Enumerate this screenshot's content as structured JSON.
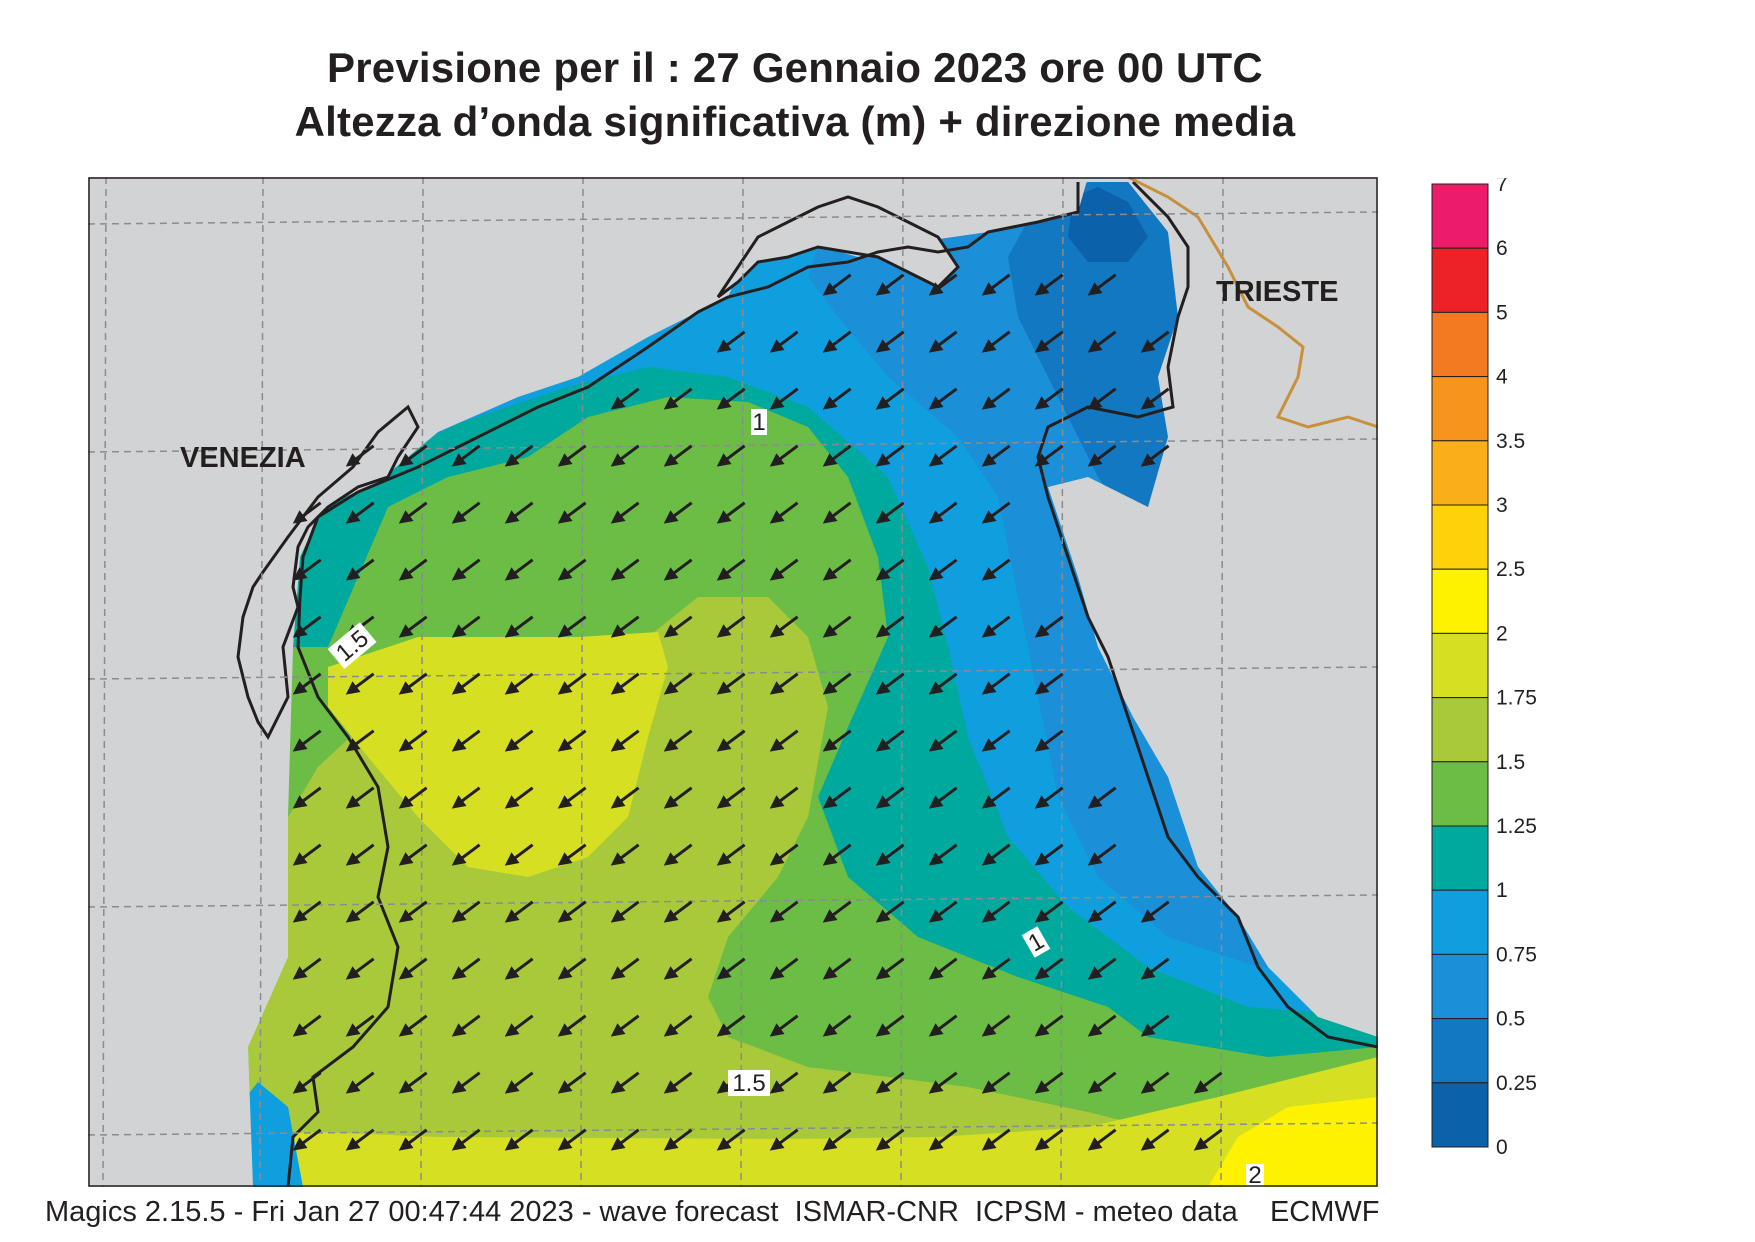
{
  "title": {
    "line1": "Previsione per il  :  27  Gennaio  2023   ore 00 UTC",
    "line2": "Altezza d’onda significativa (m) + direzione media"
  },
  "map": {
    "cities": [
      "VENEZIA",
      "TRIESTE"
    ],
    "contour_labels": [
      "1",
      "1.5",
      "1",
      "1.5",
      "2"
    ],
    "land_color": "#d1d3d4",
    "coast_color": "#231f20",
    "border_color": "#c8903a",
    "arrow_direction": "south-west"
  },
  "colorbar": {
    "levels": [
      "7",
      "6",
      "5",
      "4",
      "3.5",
      "3",
      "2.5",
      "2",
      "1.75",
      "1.5",
      "1.25",
      "1",
      "0.75",
      "0.5",
      "0.25",
      "0"
    ],
    "colors": [
      "#ed1c6b",
      "#ec2227",
      "#f47a22",
      "#f7941d",
      "#faaf1a",
      "#fed10b",
      "#fff200",
      "#d7df23",
      "#a8c93a",
      "#6cbd45",
      "#00a99d",
      "#0f9fdf",
      "#1b8fd7",
      "#1278c2",
      "#0b61aa"
    ]
  },
  "footer": "Magics 2.15.5 - Fri Jan 27 00:47:44 2023 - wave forecast  ISMAR-CNR  ICPSM - meteo data    ECMWF"
}
